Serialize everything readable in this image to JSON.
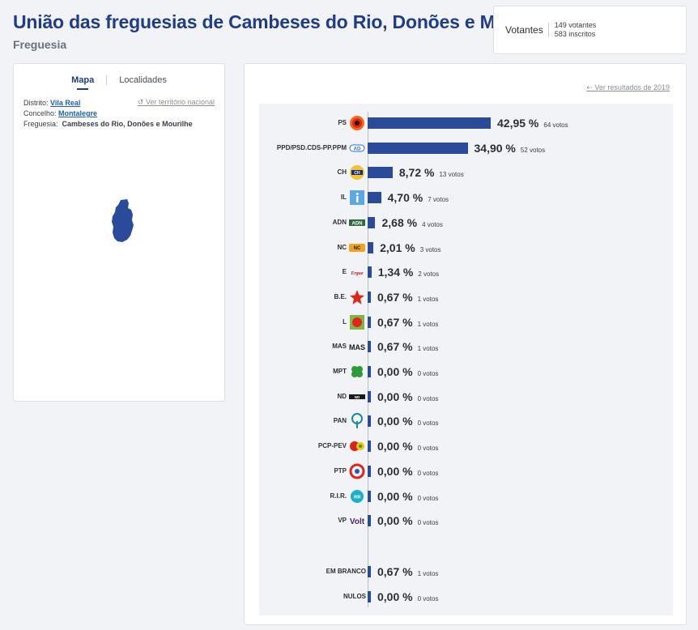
{
  "header": {
    "title": "União das freguesias de Cambeses do Rio, Donões e Mourilhe",
    "subtitle": "Freguesia"
  },
  "votantes": {
    "label": "Votantes",
    "votantes_text": "149 votantes",
    "inscritos_text": "583 inscritos"
  },
  "left_panel": {
    "tabs": [
      "Mapa",
      "Localidades"
    ],
    "active_tab": "Mapa",
    "ver_territorio": "Ver território nacional",
    "distrito_label": "Distrito:",
    "distrito_value": "Vila Real",
    "concelho_label": "Concelho:",
    "concelho_value": "Montalegre",
    "freguesia_label": "Freguesia:",
    "freguesia_value": "Cambeses do Rio, Donões e Mourilhe"
  },
  "right_panel": {
    "ver_resultados": "Ver resultados de 2019"
  },
  "colors": {
    "bar": "#2a4a9a",
    "title": "#1f3c88",
    "map_region": "#2a4a9a"
  },
  "chart_data": {
    "type": "bar",
    "orientation": "horizontal",
    "categories": [
      "PS",
      "PPD/PSD.CDS-PP.PPM",
      "CH",
      "IL",
      "ADN",
      "NC",
      "E",
      "B.E.",
      "L",
      "MAS",
      "MPT",
      "ND",
      "PAN",
      "PCP-PEV",
      "PTP",
      "R.I.R.",
      "VP",
      "EM BRANCO",
      "NULOS"
    ],
    "rows": [
      {
        "label": "PS",
        "pct": 42.95,
        "pct_text": "42,95 %",
        "votos": "64 votos",
        "icon": "ps-logo-icon"
      },
      {
        "label": "PPD/PSD.CDS-PP.PPM",
        "pct": 34.9,
        "pct_text": "34,90 %",
        "votos": "52 votos",
        "icon": "ad-logo-icon"
      },
      {
        "label": "CH",
        "pct": 8.72,
        "pct_text": "8,72 %",
        "votos": "13 votos",
        "icon": "chega-logo-icon"
      },
      {
        "label": "IL",
        "pct": 4.7,
        "pct_text": "4,70 %",
        "votos": "7 votos",
        "icon": "il-logo-icon"
      },
      {
        "label": "ADN",
        "pct": 2.68,
        "pct_text": "2,68 %",
        "votos": "4 votos",
        "icon": "adn-logo-icon"
      },
      {
        "label": "NC",
        "pct": 2.01,
        "pct_text": "2,01 %",
        "votos": "3 votos",
        "icon": "nc-logo-icon"
      },
      {
        "label": "E",
        "pct": 1.34,
        "pct_text": "1,34 %",
        "votos": "2 votos",
        "icon": "ergue-te-logo-icon"
      },
      {
        "label": "B.E.",
        "pct": 0.67,
        "pct_text": "0,67 %",
        "votos": "1 votos",
        "icon": "be-star-icon"
      },
      {
        "label": "L",
        "pct": 0.67,
        "pct_text": "0,67 %",
        "votos": "1 votos",
        "icon": "livre-logo-icon"
      },
      {
        "label": "MAS",
        "pct": 0.67,
        "pct_text": "0,67 %",
        "votos": "1 votos",
        "icon": "mas-logo-icon"
      },
      {
        "label": "MPT",
        "pct": 0.0,
        "pct_text": "0,00 %",
        "votos": "0 votos",
        "icon": "mpt-clover-icon"
      },
      {
        "label": "ND",
        "pct": 0.0,
        "pct_text": "0,00 %",
        "votos": "0 votos",
        "icon": "nd-logo-icon"
      },
      {
        "label": "PAN",
        "pct": 0.0,
        "pct_text": "0,00 %",
        "votos": "0 votos",
        "icon": "pan-tree-icon"
      },
      {
        "label": "PCP-PEV",
        "pct": 0.0,
        "pct_text": "0,00 %",
        "votos": "0 votos",
        "icon": "cdu-logo-icon"
      },
      {
        "label": "PTP",
        "pct": 0.0,
        "pct_text": "0,00 %",
        "votos": "0 votos",
        "icon": "ptp-logo-icon"
      },
      {
        "label": "R.I.R.",
        "pct": 0.0,
        "pct_text": "0,00 %",
        "votos": "0 votos",
        "icon": "rir-logo-icon"
      },
      {
        "label": "VP",
        "pct": 0.0,
        "pct_text": "0,00 %",
        "votos": "0 votos",
        "icon": "volt-logo-icon"
      },
      {
        "label": "EM BRANCO",
        "pct": 0.67,
        "pct_text": "0,67 %",
        "votos": "1 votos",
        "icon": ""
      },
      {
        "label": "NULOS",
        "pct": 0.0,
        "pct_text": "0,00 %",
        "votos": "0 votos",
        "icon": ""
      }
    ],
    "xlim": [
      0,
      42.95
    ]
  }
}
